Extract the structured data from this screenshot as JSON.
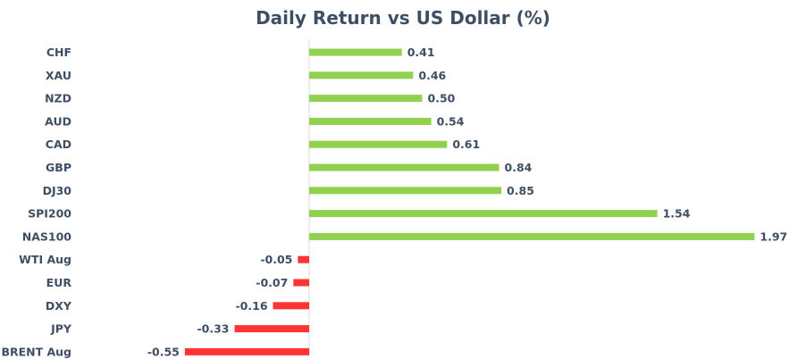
{
  "chart_data": {
    "type": "bar",
    "orientation": "horizontal",
    "title": "Daily Return vs US Dollar (%)",
    "xlabel": "",
    "ylabel": "",
    "categories": [
      "CHF",
      "XAU",
      "NZD",
      "AUD",
      "CAD",
      "GBP",
      "DJ30",
      "SPI200",
      "NAS100",
      "WTI Aug",
      "EUR",
      "DXY",
      "JPY",
      "BRENT Aug"
    ],
    "values": [
      0.41,
      0.46,
      0.5,
      0.54,
      0.61,
      0.84,
      0.85,
      1.54,
      1.97,
      -0.05,
      -0.07,
      -0.16,
      -0.33,
      -0.55
    ],
    "value_labels": [
      "0.41",
      "0.46",
      "0.50",
      "0.54",
      "0.61",
      "0.84",
      "0.85",
      "1.54",
      "1.97",
      "-0.05",
      "-0.07",
      "-0.16",
      "-0.33",
      "-0.55"
    ],
    "colors": {
      "positive": "#92d050",
      "negative": "#ff3333",
      "axis": "#d9d9d9",
      "text": "#3f4f63"
    },
    "grid": false,
    "legend": "none"
  }
}
